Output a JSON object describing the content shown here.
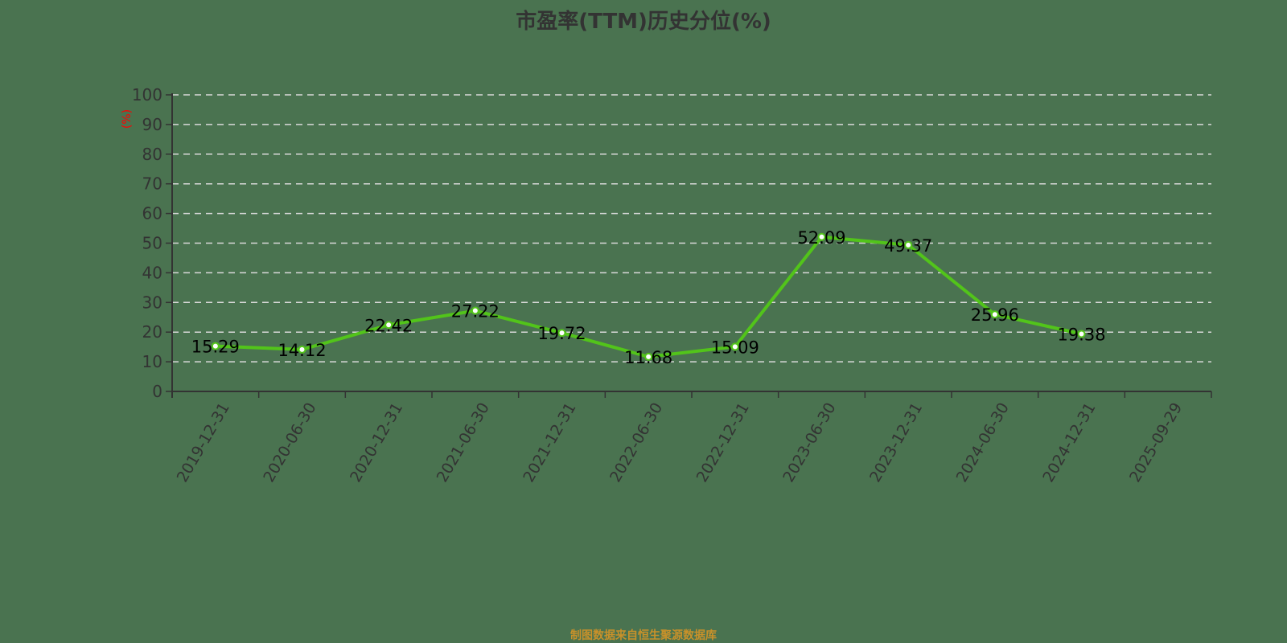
{
  "chart_data": {
    "type": "line",
    "title": "市盈率(TTM)历史分位(%)",
    "xlabel": "",
    "ylabel": "(%)",
    "ylim": [
      0,
      100
    ],
    "yticks": [
      0,
      10,
      20,
      30,
      40,
      50,
      60,
      70,
      80,
      90,
      100
    ],
    "grid": "horizontal dashed",
    "legend": "none",
    "categories": [
      "2019-12-31",
      "2020-06-30",
      "2020-12-31",
      "2021-06-30",
      "2021-12-31",
      "2022-06-30",
      "2022-12-31",
      "2023-06-30",
      "2023-12-31",
      "2024-06-30",
      "2024-12-31",
      "2025-09-29"
    ],
    "series": [
      {
        "name": "市盈率(TTM)历史分位",
        "values": [
          15.29,
          14.12,
          22.42,
          27.22,
          19.72,
          11.68,
          15.09,
          52.09,
          49.37,
          25.96,
          19.38,
          null
        ]
      }
    ],
    "colors": {
      "line": "#52c41a",
      "background": "#4a7350",
      "axis": "#333333",
      "grid": "#d9d9d9",
      "ylabel": "#ff0000",
      "footer": "#c8912a"
    }
  },
  "footer": "制图数据来自恒生聚源数据库"
}
